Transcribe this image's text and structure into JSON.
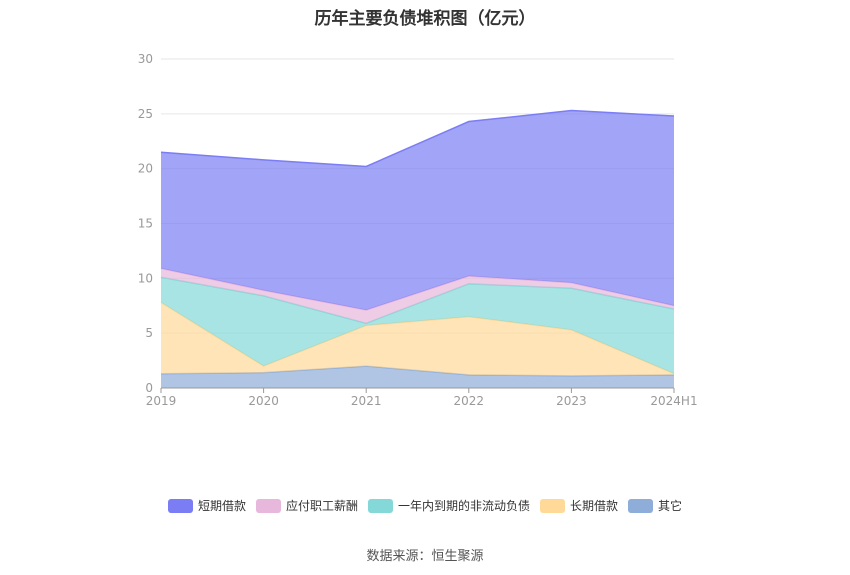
{
  "chart_data": {
    "type": "area",
    "stacked": true,
    "title": "历年主要负债堆积图（亿元）",
    "categories": [
      "2019",
      "2020",
      "2021",
      "2022",
      "2023",
      "2024H1"
    ],
    "y_ticks": [
      "0",
      "5",
      "10",
      "15",
      "20",
      "25",
      "30"
    ],
    "ylim": [
      0,
      30
    ],
    "grid": true,
    "legend_position": "bottom",
    "series": [
      {
        "name": "其它",
        "color": "#8fadd9",
        "values": [
          1.3,
          1.4,
          2.0,
          1.2,
          1.1,
          1.2
        ]
      },
      {
        "name": "长期借款",
        "color": "#ffd998",
        "values": [
          6.5,
          0.6,
          3.7,
          5.3,
          4.2,
          0.1
        ]
      },
      {
        "name": "一年内到期的非流动负债",
        "color": "#85d8d8",
        "values": [
          2.3,
          6.4,
          0.2,
          3.0,
          3.8,
          5.9
        ]
      },
      {
        "name": "应付职工薪酬",
        "color": "#e8b7dc",
        "values": [
          0.8,
          0.5,
          1.2,
          0.7,
          0.5,
          0.3
        ]
      },
      {
        "name": "短期借款",
        "color": "#7b7df4",
        "values": [
          10.6,
          11.9,
          13.1,
          14.1,
          15.7,
          17.3
        ]
      }
    ],
    "legend_order": [
      "短期借款",
      "应付职工薪酬",
      "一年内到期的非流动负债",
      "长期借款",
      "其它"
    ]
  },
  "source": "数据来源：恒生聚源"
}
